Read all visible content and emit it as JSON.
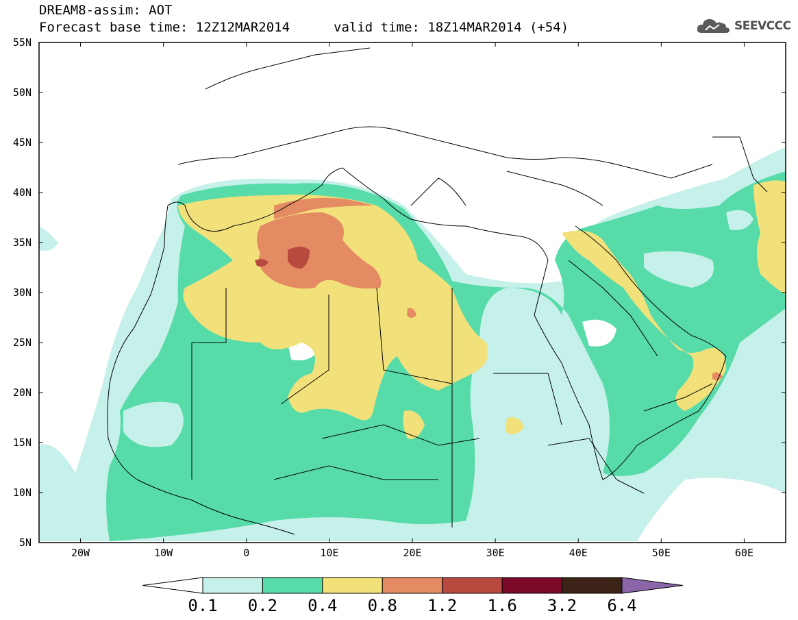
{
  "header": {
    "line1": "DREAM8-assim: AOT",
    "line2": "Forecast base time: 12Z12MAR2014",
    "line3": "valid time: 18Z14MAR2014 (+54)"
  },
  "logo": {
    "text": "SEEVCCC",
    "icon": "cloud-logo-icon"
  },
  "map": {
    "lat_labels": [
      "55N",
      "50N",
      "45N",
      "40N",
      "35N",
      "30N",
      "25N",
      "20N",
      "15N",
      "10N",
      "5N"
    ],
    "lon_labels": [
      "20W",
      "10W",
      "0",
      "10E",
      "20E",
      "30E",
      "40E",
      "50E",
      "60E"
    ],
    "extent": {
      "lon": [
        -25,
        65
      ],
      "lat": [
        5,
        55
      ]
    }
  },
  "colorbar": {
    "labels": [
      "0.1",
      "0.2",
      "0.4",
      "0.8",
      "1.2",
      "1.6",
      "3.2",
      "6.4"
    ],
    "colors": [
      "#ffffff",
      "#c6f0ea",
      "#57dba9",
      "#f2e17a",
      "#e58b64",
      "#b7493f",
      "#7a0a28",
      "#3b2417",
      "#8a66a8"
    ]
  }
}
